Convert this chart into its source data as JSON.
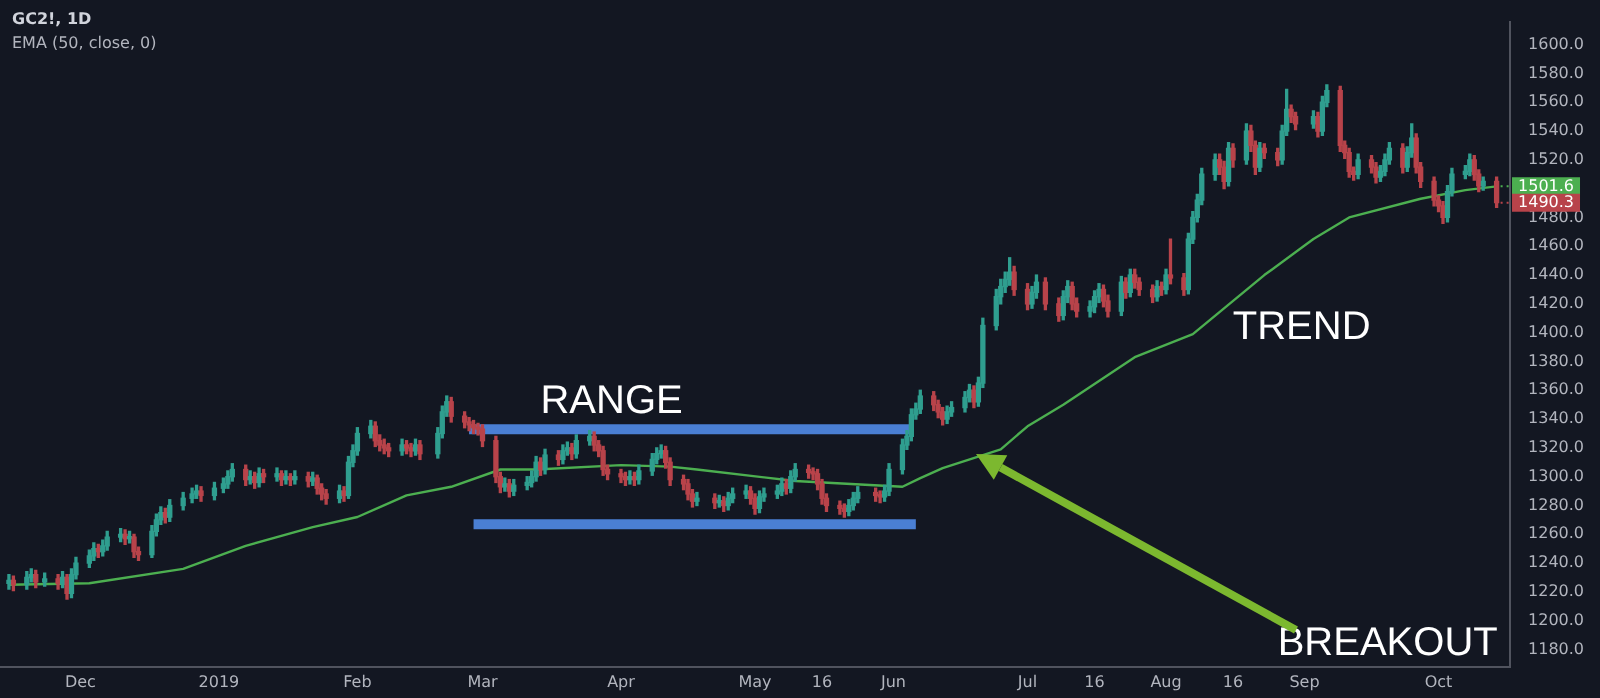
{
  "chart_data": {
    "type": "candlestick",
    "title": "GC2!, 1D",
    "subtitle": "EMA (50, close, 0)",
    "xlim": [
      "2018-11-13",
      "2019-10-17"
    ],
    "xticks": [
      {
        "value": "2018-12-01",
        "label": "Dec"
      },
      {
        "value": "2019-01-01",
        "label": "2019"
      },
      {
        "value": "2019-02-01",
        "label": "Feb"
      },
      {
        "value": "2019-03-01",
        "label": "Mar"
      },
      {
        "value": "2019-04-01",
        "label": "Apr"
      },
      {
        "value": "2019-05-01",
        "label": "May"
      },
      {
        "value": "2019-05-16",
        "label": "16"
      },
      {
        "value": "2019-06-01",
        "label": "Jun"
      },
      {
        "value": "2019-07-01",
        "label": "Jul"
      },
      {
        "value": "2019-07-16",
        "label": "16"
      },
      {
        "value": "2019-08-01",
        "label": "Aug"
      },
      {
        "value": "2019-08-16",
        "label": "16"
      },
      {
        "value": "2019-09-01",
        "label": "Sep"
      },
      {
        "value": "2019-10-01",
        "label": "Oct"
      }
    ],
    "ylim": [
      1168,
      1616
    ],
    "yticks": [
      {
        "value": 1180,
        "label": "1180.0"
      },
      {
        "value": 1200,
        "label": "1200.0"
      },
      {
        "value": 1220,
        "label": "1220.0"
      },
      {
        "value": 1240,
        "label": "1240.0"
      },
      {
        "value": 1260,
        "label": "1260.0"
      },
      {
        "value": 1280,
        "label": "1280.0"
      },
      {
        "value": 1300,
        "label": "1300.0"
      },
      {
        "value": 1320,
        "label": "1320.0"
      },
      {
        "value": 1340,
        "label": "1340.0"
      },
      {
        "value": 1360,
        "label": "1360.0"
      },
      {
        "value": 1380,
        "label": "1380.0"
      },
      {
        "value": 1400,
        "label": "1400.0"
      },
      {
        "value": 1420,
        "label": "1420.0"
      },
      {
        "value": 1440,
        "label": "1440.0"
      },
      {
        "value": 1460,
        "label": "1460.0"
      },
      {
        "value": 1480,
        "label": "1480.0"
      },
      {
        "value": 1500,
        "label": null
      },
      {
        "value": 1520,
        "label": "1520.0"
      },
      {
        "value": 1540,
        "label": "1540.0"
      },
      {
        "value": 1560,
        "label": "1560.0"
      },
      {
        "value": 1580,
        "label": "1580.0"
      },
      {
        "value": 1600,
        "label": "1600.0"
      }
    ],
    "annotations": [
      "RANGE",
      "TREND",
      "BREAKOUT",
      {
        "text": "1501.6",
        "x": "2019-10-14",
        "y": 1501.6
      },
      {
        "text": "1490.3",
        "x": "2019-10-14",
        "y": 1490.3
      }
    ],
    "series": [
      {
        "colors": [
          "#2f9e8f",
          "#b8434a",
          "#2f9e8f",
          "#2f9e8f",
          "#b8434a",
          "#2f9e8f",
          "#b8434a",
          "#2f9e8f",
          "#b8434a",
          "#2f9e8f",
          "#2f9e8f",
          "#2f9e8f",
          "#2f9e8f",
          "#b8434a",
          "#2f9e8f",
          "#2f9e8f",
          "#2f9e8f",
          "#b8434a",
          "#2f9e8f",
          "#b8434a",
          "#b8434a",
          "#2f9e8f",
          "#2f9e8f",
          "#2f9e8f",
          "#b8434a",
          "#2f9e8f",
          "#2f9e8f",
          "#2f9e8f",
          "#2f9e8f",
          "#b8434a",
          "#2f9e8f",
          "#2f9e8f",
          "#2f9e8f",
          "#2f9e8f",
          "#b8434a",
          "#2f9e8f",
          "#b8434a",
          "#2f9e8f",
          "#b8434a",
          "#2f9e8f",
          "#b8434a",
          "#2f9e8f",
          "#b8434a",
          "#2f9e8f",
          "#b8434a",
          "#2f9e8f",
          "#b8434a",
          "#b8434a",
          "#b8434a",
          "#2f9e8f",
          "#b8434a",
          "#2f9e8f",
          "#2f9e8f",
          "#2f9e8f",
          "#2f9e8f",
          "#b8434a",
          "#b8434a",
          "#b8434a",
          "#b8434a",
          "#2f9e8f",
          "#b8434a",
          "#b8434a",
          "#2f9e8f",
          "#b8434a",
          "#2f9e8f",
          "#2f9e8f",
          "#2f9e8f",
          "#b8434a",
          "#b8434a",
          "#b8434a",
          "#b8434a",
          "#b8434a",
          "#b8434a",
          "#b8434a",
          "#b8434a",
          "#2f9e8f",
          "#b8434a",
          "#2f9e8f",
          "#2f9e8f",
          "#2f9e8f",
          "#2f9e8f",
          "#b8434a",
          "#2f9e8f",
          "#b8434a",
          "#2f9e8f",
          "#2f9e8f",
          "#b8434a",
          "#2f9e8f",
          "#2f9e8f",
          "#b8434a",
          "#b8434a",
          "#b8434a",
          "#b8434a",
          "#b8434a",
          "#b8434a",
          "#2f9e8f",
          "#b8434a",
          "#2f9e8f",
          "#2f9e8f",
          "#2f9e8f",
          "#2f9e8f",
          "#b8434a",
          "#b8434a",
          "#b8434a",
          "#b8434a",
          "#b8434a",
          "#2f9e8f",
          "#b8434a",
          "#2f9e8f",
          "#b8434a",
          "#2f9e8f",
          "#2f9e8f",
          "#2f9e8f",
          "#b8434a",
          "#b8434a",
          "#2f9e8f",
          "#2f9e8f",
          "#2f9e8f",
          "#2f9e8f",
          "#b8434a",
          "#2f9e8f",
          "#2f9e8f",
          "#b8434a",
          "#b8434a",
          "#b8434a",
          "#b8434a",
          "#b8434a",
          "#b8434a",
          "#b8434a",
          "#2f9e8f",
          "#2f9e8f",
          "#2f9e8f",
          "#b8434a",
          "#b8434a",
          "#2f9e8f",
          "#2f9e8f",
          "#2f9e8f",
          "#2f9e8f",
          "#2f9e8f",
          "#2f9e8f",
          "#2f9e8f",
          "#b8434a",
          "#b8434a",
          "#b8434a",
          "#2f9e8f",
          "#2f9e8f",
          "#2f9e8f",
          "#2f9e8f",
          "#b8434a",
          "#2f9e8f",
          "#2f9e8f",
          "#2f9e8f",
          "#2f9e8f",
          "#2f9e8f",
          "#2f9e8f",
          "#b8434a",
          "#b8434a",
          "#2f9e8f",
          "#2f9e8f",
          "#b8434a",
          "#b8434a",
          "#2f9e8f",
          "#2f9e8f",
          "#b8434a",
          "#b8434a",
          "#2f9e8f",
          "#2f9e8f",
          "#2f9e8f",
          "#b8434a",
          "#b8434a",
          "#2f9e8f",
          "#b8434a",
          "#2f9e8f",
          "#b8434a",
          "#b8434a",
          "#b8434a",
          "#2f9e8f",
          "#b8434a",
          "#2f9e8f",
          "#b8434a",
          "#b8434a",
          "#2f9e8f",
          "#2f9e8f",
          "#2f9e8f",
          "#2f9e8f",
          "#2f9e8f",
          "#b8434a",
          "#b8434a",
          "#2f9e8f",
          "#b8434a",
          "#2f9e8f",
          "#b8434a",
          "#b8434a",
          "#2f9e8f",
          "#b8434a",
          "#b8434a",
          "#2f9e8f",
          "#2f9e8f",
          "#b8434a",
          "#b8434a",
          "#2f9e8f",
          "#b8434a",
          "#2f9e8f",
          "#2f9e8f",
          "#b8434a",
          "#b8434a",
          "#b8434a",
          "#b8434a",
          "#2f9e8f",
          "#b8434a",
          "#b8434a",
          "#2f9e8f",
          "#2f9e8f",
          "#2f9e8f",
          "#b8434a",
          "#2f9e8f",
          "#2f9e8f",
          "#b8434a",
          "#b8434a",
          "#b8434a",
          "#b8434a",
          "#b8434a",
          "#2f9e8f",
          "#2f9e8f",
          "#2f9e8f",
          "#2f9e8f",
          "#b8434a",
          "#b8434a",
          "#2f9e8f",
          "#b8434a"
        ],
        "x": [
          "2018-11-15",
          "2018-11-16",
          "2018-11-19",
          "2018-11-20",
          "2018-11-21",
          "2018-11-23",
          "2018-11-26",
          "2018-11-27",
          "2018-11-28",
          "2018-11-29",
          "2018-11-30",
          "2018-12-03",
          "2018-12-04",
          "2018-12-05",
          "2018-12-06",
          "2018-12-07",
          "2018-12-10",
          "2018-12-11",
          "2018-12-12",
          "2018-12-13",
          "2018-12-14",
          "2018-12-17",
          "2018-12-18",
          "2018-12-19",
          "2018-12-20",
          "2018-12-21",
          "2018-12-24",
          "2018-12-26",
          "2018-12-27",
          "2018-12-28",
          "2018-12-31",
          "2019-01-02",
          "2019-01-03",
          "2019-01-04",
          "2019-01-07",
          "2019-01-08",
          "2019-01-09",
          "2019-01-10",
          "2019-01-11",
          "2019-01-14",
          "2019-01-15",
          "2019-01-16",
          "2019-01-17",
          "2019-01-18",
          "2019-01-21",
          "2019-01-22",
          "2019-01-23",
          "2019-01-24",
          "2019-01-25",
          "2019-01-28",
          "2019-01-29",
          "2019-01-30",
          "2019-01-31",
          "2019-02-01",
          "2019-02-04",
          "2019-02-05",
          "2019-02-06",
          "2019-02-07",
          "2019-02-08",
          "2019-02-11",
          "2019-02-12",
          "2019-02-13",
          "2019-02-14",
          "2019-02-15",
          "2019-02-19",
          "2019-02-20",
          "2019-02-21",
          "2019-02-22",
          "2019-02-25",
          "2019-02-26",
          "2019-02-27",
          "2019-02-28",
          "2019-03-01",
          "2019-03-04",
          "2019-03-05",
          "2019-03-06",
          "2019-03-07",
          "2019-03-08",
          "2019-03-11",
          "2019-03-12",
          "2019-03-13",
          "2019-03-14",
          "2019-03-15",
          "2019-03-18",
          "2019-03-19",
          "2019-03-20",
          "2019-03-21",
          "2019-03-22",
          "2019-03-25",
          "2019-03-26",
          "2019-03-27",
          "2019-03-28",
          "2019-03-29",
          "2019-04-01",
          "2019-04-02",
          "2019-04-03",
          "2019-04-04",
          "2019-04-05",
          "2019-04-08",
          "2019-04-09",
          "2019-04-10",
          "2019-04-11",
          "2019-04-12",
          "2019-04-15",
          "2019-04-16",
          "2019-04-17",
          "2019-04-18",
          "2019-04-22",
          "2019-04-23",
          "2019-04-24",
          "2019-04-25",
          "2019-04-26",
          "2019-04-29",
          "2019-04-30",
          "2019-05-01",
          "2019-05-02",
          "2019-05-03",
          "2019-05-06",
          "2019-05-07",
          "2019-05-08",
          "2019-05-09",
          "2019-05-10",
          "2019-05-13",
          "2019-05-14",
          "2019-05-15",
          "2019-05-16",
          "2019-05-17",
          "2019-05-20",
          "2019-05-21",
          "2019-05-22",
          "2019-05-23",
          "2019-05-24",
          "2019-05-28",
          "2019-05-29",
          "2019-05-30",
          "2019-05-31",
          "2019-06-03",
          "2019-06-04",
          "2019-06-05",
          "2019-06-06",
          "2019-06-07",
          "2019-06-10",
          "2019-06-11",
          "2019-06-12",
          "2019-06-13",
          "2019-06-14",
          "2019-06-17",
          "2019-06-18",
          "2019-06-19",
          "2019-06-20",
          "2019-06-21",
          "2019-06-24",
          "2019-06-25",
          "2019-06-26",
          "2019-06-27",
          "2019-06-28",
          "2019-07-01",
          "2019-07-02",
          "2019-07-03",
          "2019-07-05",
          "2019-07-08",
          "2019-07-09",
          "2019-07-10",
          "2019-07-11",
          "2019-07-12",
          "2019-07-15",
          "2019-07-16",
          "2019-07-17",
          "2019-07-18",
          "2019-07-19",
          "2019-07-22",
          "2019-07-23",
          "2019-07-24",
          "2019-07-25",
          "2019-07-26",
          "2019-07-29",
          "2019-07-30",
          "2019-07-31",
          "2019-08-01",
          "2019-08-02",
          "2019-08-05",
          "2019-08-06",
          "2019-08-07",
          "2019-08-08",
          "2019-08-09",
          "2019-08-12",
          "2019-08-13",
          "2019-08-14",
          "2019-08-15",
          "2019-08-16",
          "2019-08-19",
          "2019-08-20",
          "2019-08-21",
          "2019-08-22",
          "2019-08-23",
          "2019-08-26",
          "2019-08-27",
          "2019-08-28",
          "2019-08-29",
          "2019-08-30",
          "2019-09-03",
          "2019-09-04",
          "2019-09-05",
          "2019-09-06",
          "2019-09-09",
          "2019-09-10",
          "2019-09-11",
          "2019-09-12",
          "2019-09-13",
          "2019-09-16",
          "2019-09-17",
          "2019-09-18",
          "2019-09-19",
          "2019-09-20",
          "2019-09-23",
          "2019-09-24",
          "2019-09-25",
          "2019-09-26",
          "2019-09-27",
          "2019-09-30",
          "2019-10-01",
          "2019-10-02",
          "2019-10-03",
          "2019-10-04",
          "2019-10-07",
          "2019-10-08",
          "2019-10-09",
          "2019-10-10",
          "2019-10-11",
          "2019-10-14"
        ],
        "ohlc": [
          [
            1226,
            1232,
            1222,
            1228
          ],
          [
            1228,
            1231,
            1221,
            1225
          ],
          [
            1225,
            1234,
            1222,
            1230
          ],
          [
            1230,
            1236,
            1227,
            1232
          ],
          [
            1232,
            1235,
            1223,
            1227
          ],
          [
            1227,
            1233,
            1224,
            1229
          ],
          [
            1229,
            1232,
            1222,
            1226
          ],
          [
            1226,
            1234,
            1223,
            1230
          ],
          [
            1230,
            1232,
            1215,
            1219
          ],
          [
            1219,
            1236,
            1216,
            1232
          ],
          [
            1232,
            1244,
            1229,
            1240
          ],
          [
            1240,
            1249,
            1237,
            1245
          ],
          [
            1245,
            1254,
            1242,
            1250
          ],
          [
            1250,
            1253,
            1244,
            1248
          ],
          [
            1248,
            1256,
            1245,
            1252
          ],
          [
            1252,
            1262,
            1249,
            1258
          ],
          [
            1258,
            1264,
            1255,
            1260
          ],
          [
            1260,
            1263,
            1253,
            1257
          ],
          [
            1257,
            1262,
            1254,
            1258
          ],
          [
            1258,
            1260,
            1244,
            1248
          ],
          [
            1248,
            1251,
            1242,
            1246
          ],
          [
            1246,
            1266,
            1244,
            1262
          ],
          [
            1262,
            1274,
            1259,
            1270
          ],
          [
            1270,
            1279,
            1267,
            1275
          ],
          [
            1275,
            1278,
            1268,
            1272
          ],
          [
            1272,
            1284,
            1269,
            1280
          ],
          [
            1280,
            1289,
            1277,
            1285
          ],
          [
            1285,
            1292,
            1282,
            1288
          ],
          [
            1288,
            1294,
            1285,
            1290
          ],
          [
            1290,
            1293,
            1283,
            1287
          ],
          [
            1287,
            1296,
            1284,
            1292
          ],
          [
            1292,
            1299,
            1289,
            1295
          ],
          [
            1295,
            1304,
            1292,
            1300
          ],
          [
            1300,
            1309,
            1297,
            1305
          ],
          [
            1305,
            1308,
            1294,
            1298
          ],
          [
            1298,
            1304,
            1295,
            1300
          ],
          [
            1300,
            1303,
            1292,
            1296
          ],
          [
            1296,
            1306,
            1293,
            1302
          ],
          [
            1302,
            1305,
            1296,
            1300
          ],
          [
            1300,
            1306,
            1297,
            1302
          ],
          [
            1302,
            1304,
            1294,
            1298
          ],
          [
            1298,
            1304,
            1295,
            1300
          ],
          [
            1300,
            1302,
            1294,
            1298
          ],
          [
            1298,
            1304,
            1295,
            1300
          ],
          [
            1300,
            1303,
            1293,
            1297
          ],
          [
            1297,
            1303,
            1294,
            1299
          ],
          [
            1299,
            1301,
            1288,
            1292
          ],
          [
            1292,
            1295,
            1284,
            1288
          ],
          [
            1288,
            1291,
            1281,
            1285
          ],
          [
            1285,
            1294,
            1282,
            1290
          ],
          [
            1290,
            1293,
            1283,
            1287
          ],
          [
            1287,
            1314,
            1285,
            1310
          ],
          [
            1310,
            1322,
            1307,
            1318
          ],
          [
            1318,
            1334,
            1315,
            1330
          ],
          [
            1330,
            1339,
            1327,
            1335
          ],
          [
            1335,
            1338,
            1321,
            1325
          ],
          [
            1325,
            1329,
            1318,
            1322
          ],
          [
            1322,
            1326,
            1316,
            1320
          ],
          [
            1320,
            1323,
            1314,
            1318
          ],
          [
            1318,
            1326,
            1315,
            1322
          ],
          [
            1322,
            1325,
            1316,
            1320
          ],
          [
            1320,
            1323,
            1314,
            1318
          ],
          [
            1318,
            1326,
            1315,
            1322
          ],
          [
            1322,
            1325,
            1312,
            1316
          ],
          [
            1316,
            1334,
            1313,
            1330
          ],
          [
            1330,
            1349,
            1327,
            1345
          ],
          [
            1345,
            1356,
            1342,
            1352
          ],
          [
            1352,
            1355,
            1338,
            1342
          ],
          [
            1342,
            1345,
            1334,
            1338
          ],
          [
            1338,
            1341,
            1332,
            1336
          ],
          [
            1336,
            1339,
            1330,
            1334
          ],
          [
            1334,
            1337,
            1329,
            1333
          ],
          [
            1333,
            1336,
            1321,
            1325
          ],
          [
            1325,
            1328,
            1296,
            1300
          ],
          [
            1300,
            1303,
            1289,
            1293
          ],
          [
            1293,
            1299,
            1290,
            1295
          ],
          [
            1295,
            1298,
            1286,
            1290
          ],
          [
            1290,
            1298,
            1287,
            1294
          ],
          [
            1294,
            1300,
            1291,
            1296
          ],
          [
            1296,
            1304,
            1293,
            1300
          ],
          [
            1300,
            1314,
            1297,
            1310
          ],
          [
            1310,
            1313,
            1301,
            1305
          ],
          [
            1305,
            1319,
            1302,
            1315
          ],
          [
            1315,
            1318,
            1308,
            1312
          ],
          [
            1312,
            1322,
            1309,
            1318
          ],
          [
            1318,
            1324,
            1315,
            1320
          ],
          [
            1320,
            1323,
            1312,
            1316
          ],
          [
            1316,
            1329,
            1313,
            1325
          ],
          [
            1325,
            1332,
            1322,
            1328
          ],
          [
            1328,
            1331,
            1318,
            1322
          ],
          [
            1322,
            1325,
            1314,
            1318
          ],
          [
            1318,
            1321,
            1301,
            1305
          ],
          [
            1305,
            1308,
            1298,
            1302
          ],
          [
            1302,
            1305,
            1296,
            1300
          ],
          [
            1300,
            1303,
            1294,
            1298
          ],
          [
            1298,
            1304,
            1295,
            1300
          ],
          [
            1300,
            1303,
            1294,
            1298
          ],
          [
            1298,
            1308,
            1295,
            1304
          ],
          [
            1304,
            1316,
            1301,
            1312
          ],
          [
            1312,
            1320,
            1309,
            1316
          ],
          [
            1316,
            1322,
            1313,
            1318
          ],
          [
            1318,
            1321,
            1306,
            1310
          ],
          [
            1310,
            1313,
            1294,
            1298
          ],
          [
            1298,
            1301,
            1291,
            1295
          ],
          [
            1295,
            1298,
            1284,
            1288
          ],
          [
            1288,
            1291,
            1279,
            1283
          ],
          [
            1283,
            1289,
            1280,
            1285
          ],
          [
            1285,
            1288,
            1278,
            1282
          ],
          [
            1282,
            1287,
            1279,
            1283
          ],
          [
            1283,
            1286,
            1276,
            1280
          ],
          [
            1280,
            1289,
            1277,
            1285
          ],
          [
            1285,
            1292,
            1282,
            1288
          ],
          [
            1288,
            1294,
            1285,
            1290
          ],
          [
            1290,
            1293,
            1281,
            1285
          ],
          [
            1285,
            1288,
            1274,
            1278
          ],
          [
            1278,
            1290,
            1275,
            1286
          ],
          [
            1286,
            1292,
            1283,
            1288
          ],
          [
            1288,
            1294,
            1285,
            1290
          ],
          [
            1290,
            1299,
            1287,
            1295
          ],
          [
            1295,
            1298,
            1288,
            1292
          ],
          [
            1292,
            1304,
            1289,
            1300
          ],
          [
            1300,
            1309,
            1297,
            1305
          ],
          [
            1305,
            1308,
            1299,
            1303
          ],
          [
            1303,
            1306,
            1298,
            1302
          ],
          [
            1302,
            1305,
            1291,
            1295
          ],
          [
            1295,
            1298,
            1281,
            1285
          ],
          [
            1285,
            1288,
            1276,
            1280
          ],
          [
            1280,
            1283,
            1274,
            1278
          ],
          [
            1278,
            1281,
            1272,
            1276
          ],
          [
            1276,
            1284,
            1273,
            1280
          ],
          [
            1280,
            1289,
            1277,
            1285
          ],
          [
            1285,
            1293,
            1282,
            1289
          ],
          [
            1289,
            1292,
            1283,
            1287
          ],
          [
            1287,
            1290,
            1282,
            1286
          ],
          [
            1286,
            1294,
            1283,
            1290
          ],
          [
            1290,
            1309,
            1287,
            1305
          ],
          [
            1305,
            1326,
            1302,
            1322
          ],
          [
            1322,
            1332,
            1319,
            1328
          ],
          [
            1328,
            1347,
            1325,
            1343
          ],
          [
            1343,
            1351,
            1340,
            1347
          ],
          [
            1347,
            1360,
            1344,
            1356
          ],
          [
            1356,
            1359,
            1346,
            1350
          ],
          [
            1350,
            1353,
            1341,
            1345
          ],
          [
            1345,
            1348,
            1336,
            1340
          ],
          [
            1340,
            1349,
            1337,
            1345
          ],
          [
            1345,
            1352,
            1342,
            1348
          ],
          [
            1348,
            1359,
            1345,
            1355
          ],
          [
            1355,
            1364,
            1352,
            1360
          ],
          [
            1360,
            1363,
            1348,
            1352
          ],
          [
            1352,
            1369,
            1349,
            1365
          ],
          [
            1365,
            1410,
            1362,
            1405
          ],
          [
            1405,
            1430,
            1402,
            1425
          ],
          [
            1425,
            1437,
            1420,
            1432
          ],
          [
            1432,
            1442,
            1428,
            1437
          ],
          [
            1437,
            1452,
            1433,
            1442
          ],
          [
            1442,
            1446,
            1426,
            1430
          ],
          [
            1430,
            1434,
            1416,
            1420
          ],
          [
            1420,
            1432,
            1417,
            1428
          ],
          [
            1428,
            1440,
            1424,
            1435
          ],
          [
            1435,
            1438,
            1416,
            1420
          ],
          [
            1420,
            1424,
            1408,
            1412
          ],
          [
            1412,
            1429,
            1409,
            1425
          ],
          [
            1425,
            1436,
            1421,
            1432
          ],
          [
            1432,
            1435,
            1416,
            1420
          ],
          [
            1420,
            1424,
            1411,
            1415
          ],
          [
            1415,
            1422,
            1411,
            1418
          ],
          [
            1418,
            1429,
            1414,
            1425
          ],
          [
            1425,
            1434,
            1421,
            1430
          ],
          [
            1430,
            1433,
            1418,
            1422
          ],
          [
            1422,
            1426,
            1411,
            1415
          ],
          [
            1415,
            1439,
            1412,
            1435
          ],
          [
            1435,
            1438,
            1424,
            1428
          ],
          [
            1428,
            1444,
            1425,
            1440
          ],
          [
            1440,
            1444,
            1431,
            1435
          ],
          [
            1435,
            1438,
            1426,
            1430
          ],
          [
            1430,
            1433,
            1421,
            1425
          ],
          [
            1425,
            1436,
            1422,
            1432
          ],
          [
            1432,
            1435,
            1426,
            1430
          ],
          [
            1430,
            1444,
            1427,
            1440
          ],
          [
            1440,
            1465,
            1434,
            1438
          ],
          [
            1438,
            1441,
            1426,
            1430
          ],
          [
            1430,
            1469,
            1427,
            1465
          ],
          [
            1465,
            1484,
            1462,
            1480
          ],
          [
            1480,
            1496,
            1477,
            1492
          ],
          [
            1492,
            1514,
            1489,
            1510
          ],
          [
            1510,
            1524,
            1506,
            1520
          ],
          [
            1520,
            1524,
            1510,
            1515
          ],
          [
            1515,
            1519,
            1500,
            1505
          ],
          [
            1505,
            1532,
            1502,
            1528
          ],
          [
            1528,
            1531,
            1515,
            1520
          ],
          [
            1520,
            1545,
            1517,
            1540
          ],
          [
            1540,
            1544,
            1526,
            1530
          ],
          [
            1530,
            1533,
            1510,
            1515
          ],
          [
            1515,
            1532,
            1512,
            1528
          ],
          [
            1528,
            1531,
            1521,
            1525
          ],
          [
            1525,
            1528,
            1516,
            1520
          ],
          [
            1520,
            1544,
            1517,
            1540
          ],
          [
            1540,
            1569,
            1537,
            1555
          ],
          [
            1555,
            1558,
            1546,
            1550
          ],
          [
            1550,
            1553,
            1541,
            1545
          ],
          [
            1545,
            1554,
            1542,
            1550
          ],
          [
            1550,
            1553,
            1536,
            1540
          ],
          [
            1540,
            1564,
            1537,
            1560
          ],
          [
            1560,
            1572,
            1557,
            1568
          ],
          [
            1568,
            1571,
            1526,
            1530
          ],
          [
            1530,
            1533,
            1521,
            1525
          ],
          [
            1525,
            1528,
            1508,
            1512
          ],
          [
            1512,
            1515,
            1506,
            1510
          ],
          [
            1510,
            1524,
            1507,
            1520
          ],
          [
            1520,
            1523,
            1511,
            1515
          ],
          [
            1515,
            1518,
            1504,
            1508
          ],
          [
            1508,
            1516,
            1505,
            1512
          ],
          [
            1512,
            1524,
            1509,
            1520
          ],
          [
            1520,
            1532,
            1517,
            1528
          ],
          [
            1528,
            1531,
            1511,
            1515
          ],
          [
            1515,
            1529,
            1512,
            1525
          ],
          [
            1525,
            1545,
            1522,
            1535
          ],
          [
            1535,
            1538,
            1511,
            1515
          ],
          [
            1515,
            1518,
            1501,
            1505
          ],
          [
            1505,
            1508,
            1488,
            1492
          ],
          [
            1492,
            1495,
            1484,
            1488
          ],
          [
            1488,
            1491,
            1476,
            1480
          ],
          [
            1480,
            1502,
            1477,
            1498
          ],
          [
            1498,
            1514,
            1495,
            1510
          ],
          [
            1510,
            1516,
            1507,
            1512
          ],
          [
            1512,
            1524,
            1509,
            1520
          ],
          [
            1520,
            1523,
            1506,
            1510
          ],
          [
            1510,
            1513,
            1498,
            1502
          ],
          [
            1502,
            1508,
            1499,
            1505
          ],
          [
            1505,
            1508,
            1487,
            1490.3
          ]
        ]
      },
      {
        "type": "line",
        "color": "#4caf50",
        "x": [
          "2018-11-15",
          "2018-12-03",
          "2018-12-24",
          "2019-01-07",
          "2019-01-22",
          "2019-02-01",
          "2019-02-12",
          "2019-02-22",
          "2019-03-05",
          "2019-03-13",
          "2019-04-01",
          "2019-04-12",
          "2019-04-18",
          "2019-05-10",
          "2019-06-03",
          "2019-06-07",
          "2019-06-12",
          "2019-06-25",
          "2019-07-01",
          "2019-07-09",
          "2019-07-25",
          "2019-08-07",
          "2019-08-23",
          "2019-09-03",
          "2019-09-11",
          "2019-09-27",
          "2019-10-07",
          "2019-10-14"
        ],
        "values": [
          1225,
          1226,
          1236,
          1252,
          1265,
          1272,
          1287,
          1293,
          1305,
          1305,
          1308,
          1307,
          1305,
          1297,
          1293,
          1299,
          1306,
          1319,
          1335,
          1350,
          1383,
          1399,
          1440,
          1465,
          1480,
          1493,
          1499,
          1501.6
        ]
      },
      {
        "type": "line",
        "color": "#4a7fd4",
        "x": [
          "2019-02-26",
          "2019-06-05"
        ],
        "values": [
          1333,
          1333
        ]
      },
      {
        "type": "line",
        "color": "#4a7fd4",
        "x": [
          "2019-02-27",
          "2019-06-06"
        ],
        "values": [
          1267,
          1267
        ]
      }
    ]
  }
}
